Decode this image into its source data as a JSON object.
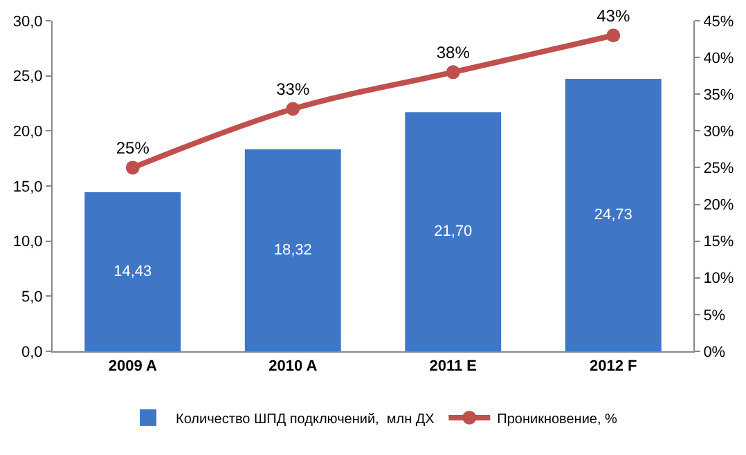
{
  "chart_data": {
    "type": "bar",
    "categories": [
      "2009 A",
      "2010 A",
      "2011 E",
      "2012 F"
    ],
    "series": [
      {
        "name": "Количество ШПД подключений,  млн ДХ",
        "color": "#3f77c6",
        "values": [
          14.43,
          18.32,
          21.7,
          24.73
        ],
        "value_labels": [
          "14,43",
          "18,32",
          "21,70",
          "24,73"
        ]
      },
      {
        "name": "Проникновение, %",
        "type": "line",
        "axis": "y2",
        "color": "#c0504d",
        "values": [
          25,
          33,
          38,
          43
        ],
        "value_labels": [
          "25%",
          "33%",
          "38%",
          "43%"
        ]
      }
    ],
    "ylim": [
      0,
      30
    ],
    "yticks": [
      {
        "value": 0,
        "label": "0,0"
      },
      {
        "value": 5,
        "label": "5,0"
      },
      {
        "value": 10,
        "label": "10,0"
      },
      {
        "value": 15,
        "label": "15,0"
      },
      {
        "value": 20,
        "label": "20,0"
      },
      {
        "value": 25,
        "label": "25,0"
      },
      {
        "value": 30,
        "label": "30,0"
      }
    ],
    "y2lim": [
      0,
      45
    ],
    "y2ticks": [
      {
        "value": 0,
        "label": "0%"
      },
      {
        "value": 5,
        "label": "5%"
      },
      {
        "value": 10,
        "label": "10%"
      },
      {
        "value": 15,
        "label": "15%"
      },
      {
        "value": 20,
        "label": "20%"
      },
      {
        "value": 25,
        "label": "25%"
      },
      {
        "value": 30,
        "label": "30%"
      },
      {
        "value": 35,
        "label": "35%"
      },
      {
        "value": 40,
        "label": "40%"
      },
      {
        "value": 45,
        "label": "45%"
      }
    ],
    "grid": false,
    "legend": "bottom",
    "marker": "circle"
  }
}
